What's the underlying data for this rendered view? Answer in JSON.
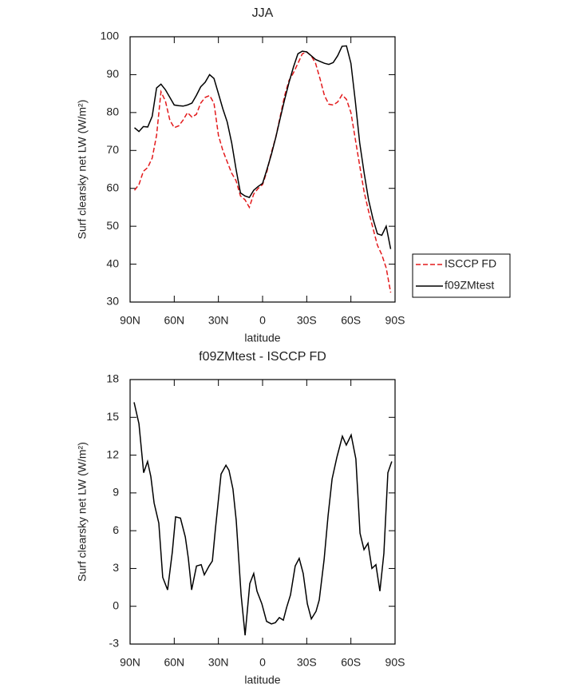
{
  "chart_data": [
    {
      "type": "line",
      "title": "JJA",
      "xlabel": "latitude",
      "ylabel": "Surf clearsky net LW (W/m²)",
      "x": [
        87,
        84,
        81,
        78,
        75,
        72,
        69,
        66,
        63,
        60,
        57,
        54,
        51,
        48,
        45,
        42,
        39,
        36,
        33,
        30,
        27,
        24,
        21,
        18,
        15,
        12,
        9,
        6,
        3,
        0,
        -3,
        -6,
        -9,
        -12,
        -15,
        -18,
        -21,
        -24,
        -27,
        -30,
        -33,
        -36,
        -39,
        -42,
        -45,
        -48,
        -51,
        -54,
        -57,
        -60,
        -63,
        -66,
        -69,
        -72,
        -75,
        -78,
        -81,
        -84,
        -87
      ],
      "series": [
        {
          "name": "ISCCP FD",
          "color": "#e31a1c",
          "dashed": true,
          "values": [
            59.5,
            61,
            64.5,
            65.5,
            68,
            74,
            85.5,
            83,
            78,
            76,
            76.5,
            78,
            80,
            78.8,
            79.5,
            82.5,
            84,
            84.5,
            82.5,
            74,
            70,
            67,
            64,
            62,
            58,
            57,
            55,
            58.5,
            60,
            61,
            64.5,
            69.5,
            73.5,
            79,
            84.5,
            88.5,
            90.5,
            93,
            95.5,
            96,
            95,
            93,
            89,
            84.5,
            82.2,
            82,
            82.8,
            84.7,
            83.5,
            80,
            73,
            66,
            59,
            54,
            49.5,
            45,
            42.5,
            39,
            32.5
          ]
        },
        {
          "name": "f09ZMtest",
          "color": "#000000",
          "dashed": false,
          "values": [
            76,
            75,
            76.3,
            76.2,
            79,
            86.5,
            87.5,
            86,
            84,
            82,
            81.8,
            81.7,
            82,
            82.5,
            84.5,
            86.8,
            88,
            90,
            89,
            85,
            81,
            77.5,
            72,
            65,
            58.8,
            58,
            57.6,
            59.5,
            60.5,
            61.3,
            65,
            69,
            73.5,
            78.5,
            83.5,
            88,
            92,
            95.5,
            96.2,
            96,
            95,
            94,
            93.5,
            93,
            92.7,
            93.2,
            95,
            97.5,
            97.6,
            93,
            83,
            72,
            64,
            57,
            52,
            48,
            47.6,
            50,
            44
          ]
        }
      ],
      "xlim": [
        90,
        -90
      ],
      "xticks": [
        {
          "value": 90,
          "label": "90N"
        },
        {
          "value": 60,
          "label": "60N"
        },
        {
          "value": 30,
          "label": "30N"
        },
        0,
        {
          "value": -30,
          "label": "30S"
        },
        {
          "value": -60,
          "label": "60S"
        },
        {
          "value": -90,
          "label": "90S"
        }
      ],
      "ylim": [
        30,
        100
      ],
      "yticks": [
        30,
        40,
        50,
        60,
        70,
        80,
        90,
        100
      ],
      "legend": "right"
    },
    {
      "type": "line",
      "title": "f09ZMtest - ISCCP FD",
      "xlabel": "latitude",
      "ylabel": "Surf clearsky net LW (W/m²)",
      "x": [
        87.3,
        84,
        80.8,
        78.1,
        75.9,
        73.7,
        70.5,
        67.8,
        64.5,
        61.3,
        59.1,
        55.8,
        52.5,
        50.4,
        48.2,
        44.9,
        41.7,
        39.6,
        36.3,
        34.1,
        32,
        28.2,
        24.9,
        22.8,
        20.1,
        17.9,
        14.6,
        11.9,
        8.7,
        6,
        3.8,
        0.5,
        -2.7,
        -6,
        -8.7,
        -11.4,
        -14.1,
        -16.3,
        -19,
        -22.2,
        -24.9,
        -27.6,
        -30.4,
        -33.1,
        -36.3,
        -38.5,
        -41.8,
        -44.5,
        -47.2,
        -50.4,
        -54.2,
        -56.9,
        -60.2,
        -63.4,
        -66.2,
        -68.9,
        -71.6,
        -74.3,
        -77,
        -79.7,
        -82.4,
        -85.1,
        -87.8
      ],
      "series": [
        {
          "name": "f09ZMtest - ISCCP FD",
          "color": "#000000",
          "dashed": false,
          "values": [
            16.2,
            14.5,
            10.6,
            11.5,
            10.3,
            8.2,
            6.6,
            2.3,
            1.3,
            4.3,
            7.1,
            7,
            5.5,
            3.8,
            1.3,
            3.2,
            3.3,
            2.5,
            3.2,
            3.6,
            6.2,
            10.5,
            11.2,
            10.8,
            9.3,
            6.8,
            0.9,
            -2.3,
            1.8,
            2.6,
            1.2,
            0.2,
            -1.2,
            -1.4,
            -1.3,
            -0.9,
            -1.1,
            -0.1,
            0.9,
            3.2,
            3.8,
            2.6,
            0.2,
            -1,
            -0.4,
            0.5,
            3.7,
            7.2,
            10.1,
            11.8,
            13.5,
            12.8,
            13.6,
            11.7,
            5.8,
            4.5,
            5,
            3,
            3.3,
            1.2,
            4.2,
            10.6,
            11.5
          ]
        }
      ],
      "xlim": [
        90,
        -90
      ],
      "xticks": [
        {
          "value": 90,
          "label": "90N"
        },
        {
          "value": 60,
          "label": "60N"
        },
        {
          "value": 30,
          "label": "30N"
        },
        0,
        {
          "value": -30,
          "label": "30S"
        },
        {
          "value": -60,
          "label": "60S"
        },
        {
          "value": -90,
          "label": "90S"
        }
      ],
      "ylim": [
        -3,
        18
      ],
      "yticks": [
        -3,
        0,
        3,
        6,
        9,
        12,
        15,
        18
      ]
    }
  ]
}
